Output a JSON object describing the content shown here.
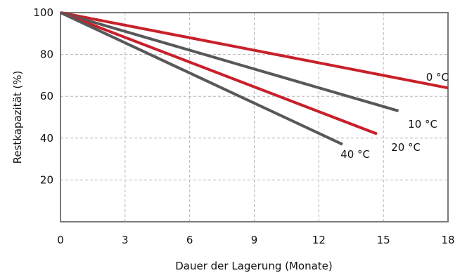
{
  "chart_data": {
    "type": "line",
    "xlabel": "Dauer der Lagerung (Monate)",
    "ylabel": "Restkapazität (%)",
    "xlim": [
      0,
      18
    ],
    "ylim": [
      0,
      100
    ],
    "x_ticks": [
      "0",
      "3",
      "6",
      "9",
      "12",
      "15",
      "18"
    ],
    "y_ticks": [
      "20",
      "40",
      "60",
      "80",
      "100"
    ],
    "grid": true,
    "series": [
      {
        "name": "0 °C",
        "color": "#c8202a",
        "points": [
          [
            0,
            100
          ],
          [
            18,
            64
          ]
        ]
      },
      {
        "name": "10 °C",
        "color": "#58585a",
        "points": [
          [
            0,
            100
          ],
          [
            15.7,
            53
          ]
        ]
      },
      {
        "name": "20 °C",
        "color": "#c8202a",
        "points": [
          [
            0,
            100
          ],
          [
            14.7,
            42
          ]
        ]
      },
      {
        "name": "40 °C",
        "color": "#58585a",
        "points": [
          [
            0,
            100
          ],
          [
            13.1,
            37
          ]
        ]
      }
    ]
  }
}
